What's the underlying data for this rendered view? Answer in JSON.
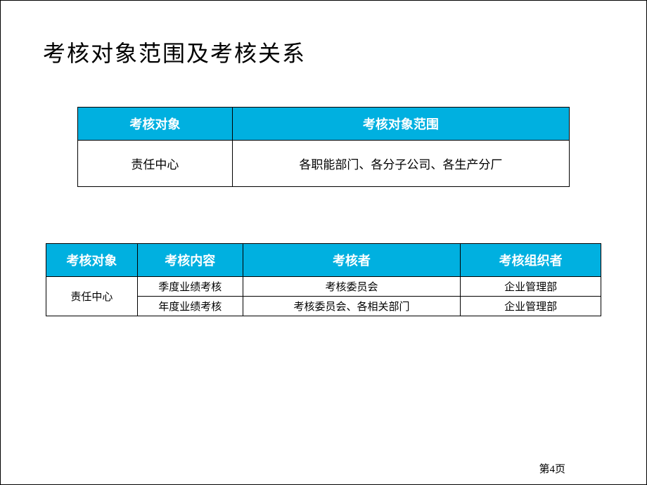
{
  "slide": {
    "title": "考核对象范围及考核关系",
    "page_label": "第4页",
    "header_bg": "#00b0e0",
    "header_color": "#ffffff",
    "table1": {
      "headers": [
        "考核对象",
        "考核对象范围"
      ],
      "row": [
        "责任中心",
        "各职能部门、各分子公司、各生产分厂"
      ]
    },
    "table2": {
      "headers": [
        "考核对象",
        "考核内容",
        "考核者",
        "考核组织者"
      ],
      "rows": [
        {
          "subject": "责任中心",
          "content": "季度业绩考核",
          "assessor": "考核委员会",
          "organizer": "企业管理部"
        },
        {
          "subject": "",
          "content": "年度业绩考核",
          "assessor": "考核委员会、各相关部门",
          "organizer": "企业管理部"
        }
      ],
      "rowspan_subject": 2
    }
  }
}
